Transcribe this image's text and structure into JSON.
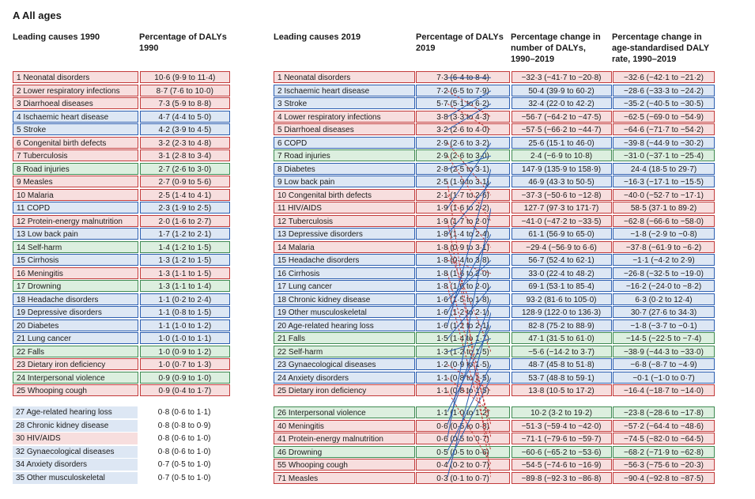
{
  "title": "A  All ages",
  "columns": {
    "c1": "Leading causes 1990",
    "c2": "Percentage of DALYs 1990",
    "c3": "Leading causes 2019",
    "c4": "Percentage of DALYs 2019",
    "c5": "Percentage change in number of DALYs, 1990–2019",
    "c6": "Percentage change in age-standardised DALY rate, 1990–2019"
  },
  "colors": {
    "red": {
      "border": "#c23b3b",
      "fill": "#f7dede"
    },
    "blue": {
      "border": "#2d5fb0",
      "fill": "#dde7f4"
    },
    "green": {
      "border": "#3f8a52",
      "fill": "#dcefdf"
    },
    "grey": {
      "border": "#8a8a8a",
      "fill": "#e9e9e9"
    }
  },
  "line_colors": {
    "solid": "#2d5fb0",
    "dash": "#c23b3b"
  },
  "rows_1990": [
    {
      "rank": 1,
      "label": "Neonatal disorders",
      "pct": "10·6 (9·9 to 11·4)",
      "color": "red"
    },
    {
      "rank": 2,
      "label": "Lower respiratory infections",
      "pct": "8·7 (7·6 to 10·0)",
      "color": "red"
    },
    {
      "rank": 3,
      "label": "Diarrhoeal diseases",
      "pct": "7·3 (5·9 to 8·8)",
      "color": "red"
    },
    {
      "rank": 4,
      "label": "Ischaemic heart disease",
      "pct": "4·7 (4·4 to 5·0)",
      "color": "blue"
    },
    {
      "rank": 5,
      "label": "Stroke",
      "pct": "4·2 (3·9 to 4·5)",
      "color": "blue"
    },
    {
      "rank": 6,
      "label": "Congenital birth defects",
      "pct": "3·2 (2·3 to 4·8)",
      "color": "red"
    },
    {
      "rank": 7,
      "label": "Tuberculosis",
      "pct": "3·1 (2·8 to 3·4)",
      "color": "red"
    },
    {
      "rank": 8,
      "label": "Road injuries",
      "pct": "2·7 (2·6 to 3·0)",
      "color": "green"
    },
    {
      "rank": 9,
      "label": "Measles",
      "pct": "2·7 (0·9 to 5·6)",
      "color": "red"
    },
    {
      "rank": 10,
      "label": "Malaria",
      "pct": "2·5 (1·4 to 4·1)",
      "color": "red"
    },
    {
      "rank": 11,
      "label": "COPD",
      "pct": "2·3 (1·9 to 2·5)",
      "color": "blue"
    },
    {
      "rank": 12,
      "label": "Protein-energy malnutrition",
      "pct": "2·0 (1·6 to 2·7)",
      "color": "red"
    },
    {
      "rank": 13,
      "label": "Low back pain",
      "pct": "1·7 (1·2 to 2·1)",
      "color": "blue"
    },
    {
      "rank": 14,
      "label": "Self-harm",
      "pct": "1·4 (1·2 to 1·5)",
      "color": "green"
    },
    {
      "rank": 15,
      "label": "Cirrhosis",
      "pct": "1·3 (1·2 to 1·5)",
      "color": "blue"
    },
    {
      "rank": 16,
      "label": "Meningitis",
      "pct": "1·3 (1·1 to 1·5)",
      "color": "red"
    },
    {
      "rank": 17,
      "label": "Drowning",
      "pct": "1·3 (1·1 to 1·4)",
      "color": "green"
    },
    {
      "rank": 18,
      "label": "Headache disorders",
      "pct": "1·1 (0·2 to 2·4)",
      "color": "blue"
    },
    {
      "rank": 19,
      "label": "Depressive disorders",
      "pct": "1·1 (0·8 to 1·5)",
      "color": "blue"
    },
    {
      "rank": 20,
      "label": "Diabetes",
      "pct": "1·1 (1·0 to 1·2)",
      "color": "blue"
    },
    {
      "rank": 21,
      "label": "Lung cancer",
      "pct": "1·0 (1·0 to 1·1)",
      "color": "blue"
    },
    {
      "rank": 22,
      "label": "Falls",
      "pct": "1·0 (0·9 to 1·2)",
      "color": "green"
    },
    {
      "rank": 23,
      "label": "Dietary iron deficiency",
      "pct": "1·0 (0·7 to 1·3)",
      "color": "red"
    },
    {
      "rank": 24,
      "label": "Interpersonal violence",
      "pct": "0·9 (0·9 to 1·0)",
      "color": "green"
    },
    {
      "rank": 25,
      "label": "Whooping cough",
      "pct": "0·9 (0·4 to 1·7)",
      "color": "red"
    }
  ],
  "below_1990": [
    {
      "rank": 27,
      "label": "Age-related hearing loss",
      "pct": "0·8 (0·6 to 1·1)",
      "color": "blue"
    },
    {
      "rank": 28,
      "label": "Chronic kidney disease",
      "pct": "0·8 (0·8 to 0·9)",
      "color": "blue"
    },
    {
      "rank": 30,
      "label": "HIV/AIDS",
      "pct": "0·8 (0·6 to 1·0)",
      "color": "red"
    },
    {
      "rank": 32,
      "label": "Gynaecological diseases",
      "pct": "0·8 (0·6 to 1·0)",
      "color": "blue"
    },
    {
      "rank": 34,
      "label": "Anxiety disorders",
      "pct": "0·7 (0·5 to 1·0)",
      "color": "blue"
    },
    {
      "rank": 35,
      "label": "Other musculoskeletal",
      "pct": "0·7 (0·5 to 1·0)",
      "color": "blue"
    }
  ],
  "rows_2019": [
    {
      "rank": 1,
      "label": "Neonatal disorders",
      "pct": "7·3 (6·4 to 8·4)",
      "chgN": "−32·3 (−41·7 to −20·8)",
      "chgR": "−32·6 (−42·1 to −21·2)",
      "color": "red"
    },
    {
      "rank": 2,
      "label": "Ischaemic heart disease",
      "pct": "7·2 (6·5 to 7·9)",
      "chgN": "50·4 (39·9 to 60·2)",
      "chgR": "−28·6 (−33·3 to −24·2)",
      "color": "blue"
    },
    {
      "rank": 3,
      "label": "Stroke",
      "pct": "5·7 (5·1 to 6·2)",
      "chgN": "32·4 (22·0 to 42·2)",
      "chgR": "−35·2 (−40·5 to −30·5)",
      "color": "blue"
    },
    {
      "rank": 4,
      "label": "Lower respiratory infections",
      "pct": "3·8 (3·3 to 4·3)",
      "chgN": "−56·7 (−64·2 to −47·5)",
      "chgR": "−62·5 (−69·0 to −54·9)",
      "color": "red"
    },
    {
      "rank": 5,
      "label": "Diarrhoeal diseases",
      "pct": "3·2 (2·6 to 4·0)",
      "chgN": "−57·5 (−66·2 to −44·7)",
      "chgR": "−64·6 (−71·7 to −54·2)",
      "color": "red"
    },
    {
      "rank": 6,
      "label": "COPD",
      "pct": "2·9 (2·6 to 3·2)",
      "chgN": "25·6 (15·1 to 46·0)",
      "chgR": "−39·8 (−44·9 to −30·2)",
      "color": "blue"
    },
    {
      "rank": 7,
      "label": "Road injuries",
      "pct": "2·9 (2·6 to 3·0)",
      "chgN": "2·4 (−6·9 to 10·8)",
      "chgR": "−31·0 (−37·1 to −25·4)",
      "color": "green"
    },
    {
      "rank": 8,
      "label": "Diabetes",
      "pct": "2·8 (2·5 to 3·1)",
      "chgN": "147·9 (135·9 to 158·9)",
      "chgR": "24·4 (18·5 to 29·7)",
      "color": "blue"
    },
    {
      "rank": 9,
      "label": "Low back pain",
      "pct": "2·5 (1·9 to 3·1)",
      "chgN": "46·9 (43·3 to 50·5)",
      "chgR": "−16·3 (−17·1 to −15·5)",
      "color": "blue"
    },
    {
      "rank": 10,
      "label": "Congenital birth defects",
      "pct": "2·1 (1·7 to 2·6)",
      "chgN": "−37·3 (−50·6 to −12·8)",
      "chgR": "−40·0 (−52·7 to −17·1)",
      "color": "red"
    },
    {
      "rank": 11,
      "label": "HIV/AIDS",
      "pct": "1·9 (1·6 to 2·2)",
      "chgN": "127·7 (97·3 to 171·7)",
      "chgR": "58·5 (37·1 to 89·2)",
      "color": "red"
    },
    {
      "rank": 12,
      "label": "Tuberculosis",
      "pct": "1·9 (1·7 to 2·0)",
      "chgN": "−41·0 (−47·2 to −33·5)",
      "chgR": "−62·8 (−66·6 to −58·0)",
      "color": "red"
    },
    {
      "rank": 13,
      "label": "Depressive disorders",
      "pct": "1·8 (1·4 to 2·4)",
      "chgN": "61·1 (56·9 to 65·0)",
      "chgR": "−1·8 (−2·9 to −0·8)",
      "color": "blue"
    },
    {
      "rank": 14,
      "label": "Malaria",
      "pct": "1·8 (0·9 to 3·1)",
      "chgN": "−29·4 (−56·9 to 6·6)",
      "chgR": "−37·8 (−61·9 to −6·2)",
      "color": "red"
    },
    {
      "rank": 15,
      "label": "Headache disorders",
      "pct": "1·8 (0·4 to 3·8)",
      "chgN": "56·7 (52·4 to 62·1)",
      "chgR": "−1·1 (−4·2 to 2·9)",
      "color": "blue"
    },
    {
      "rank": 16,
      "label": "Cirrhosis",
      "pct": "1·8 (1·6 to 2·0)",
      "chgN": "33·0 (22·4 to 48·2)",
      "chgR": "−26·8 (−32·5 to −19·0)",
      "color": "blue"
    },
    {
      "rank": 17,
      "label": "Lung cancer",
      "pct": "1·8 (1·6 to 2·0)",
      "chgN": "69·1 (53·1 to 85·4)",
      "chgR": "−16·2 (−24·0 to −8·2)",
      "color": "blue"
    },
    {
      "rank": 18,
      "label": "Chronic kidney disease",
      "pct": "1·6 (1·5 to 1·8)",
      "chgN": "93·2 (81·6 to 105·0)",
      "chgR": "6·3 (0·2 to 12·4)",
      "color": "blue"
    },
    {
      "rank": 19,
      "label": "Other musculoskeletal",
      "pct": "1·6 (1·2 to 2·1)",
      "chgN": "128·9 (122·0 to 136·3)",
      "chgR": "30·7 (27·6 to 34·3)",
      "color": "blue"
    },
    {
      "rank": 20,
      "label": "Age-related hearing loss",
      "pct": "1·6 (1·2 to 2·1)",
      "chgN": "82·8 (75·2 to 88·9)",
      "chgR": "−1·8 (−3·7 to −0·1)",
      "color": "blue"
    },
    {
      "rank": 21,
      "label": "Falls",
      "pct": "1·5 (1·4 to 1·7)",
      "chgN": "47·1 (31·5 to 61·0)",
      "chgR": "−14·5 (−22·5 to −7·4)",
      "color": "green"
    },
    {
      "rank": 22,
      "label": "Self-harm",
      "pct": "1·3 (1·2 to 1·5)",
      "chgN": "−5·6 (−14·2 to 3·7)",
      "chgR": "−38·9 (−44·3 to −33·0)",
      "color": "green"
    },
    {
      "rank": 23,
      "label": "Gynaecological diseases",
      "pct": "1·2 (0·9 to 1·5)",
      "chgN": "48·7 (45·8 to 51·8)",
      "chgR": "−6·8 (−8·7 to −4·9)",
      "color": "blue"
    },
    {
      "rank": 24,
      "label": "Anxiety disorders",
      "pct": "1·1 (0·8 to 1·5)",
      "chgN": "53·7 (48·8 to 59·1)",
      "chgR": "−0·1 (−1·0 to 0·7)",
      "color": "blue"
    },
    {
      "rank": 25,
      "label": "Dietary iron deficiency",
      "pct": "1·1 (0·8 to 1·5)",
      "chgN": "13·8 (10·5 to 17·2)",
      "chgR": "−16·4 (−18·7 to −14·0)",
      "color": "red"
    }
  ],
  "below_2019": [
    {
      "rank": 26,
      "label": "Interpersonal violence",
      "pct": "1·1 (1·0 to 1·2)",
      "chgN": "10·2 (3·2 to 19·2)",
      "chgR": "−23·8 (−28·6 to −17·8)",
      "color": "green"
    },
    {
      "rank": 40,
      "label": "Meningitis",
      "pct": "0·6 (0·5 to 0·8)",
      "chgN": "−51·3 (−59·4 to −42·0)",
      "chgR": "−57·2 (−64·4 to −48·6)",
      "color": "red"
    },
    {
      "rank": 41,
      "label": "Protein-energy malnutrition",
      "pct": "0·6 (0·5 to 0·7)",
      "chgN": "−71·1 (−79·6 to −59·7)",
      "chgR": "−74·5 (−82·0 to −64·5)",
      "color": "red"
    },
    {
      "rank": 46,
      "label": "Drowning",
      "pct": "0·5 (0·5 to 0·6)",
      "chgN": "−60·6 (−65·2 to −53·6)",
      "chgR": "−68·2 (−71·9 to −62·8)",
      "color": "green"
    },
    {
      "rank": 55,
      "label": "Whooping cough",
      "pct": "0·4 (0·2 to 0·7)",
      "chgN": "−54·5 (−74·6 to −16·9)",
      "chgR": "−56·3 (−75·6 to −20·3)",
      "color": "red"
    },
    {
      "rank": 71,
      "label": "Measles",
      "pct": "0·3 (0·1 to 0·7)",
      "chgN": "−89·8 (−92·3 to −86·8)",
      "chgR": "−90·4 (−92·8 to −87·5)",
      "color": "red"
    }
  ],
  "connectors": [
    {
      "from": 1,
      "to": 1,
      "style": "solid"
    },
    {
      "from": 2,
      "to": 4,
      "style": "dash"
    },
    {
      "from": 3,
      "to": 5,
      "style": "dash"
    },
    {
      "from": 4,
      "to": 2,
      "style": "solid"
    },
    {
      "from": 5,
      "to": 3,
      "style": "solid"
    },
    {
      "from": 6,
      "to": 10,
      "style": "dash"
    },
    {
      "from": 7,
      "to": 12,
      "style": "dash"
    },
    {
      "from": 8,
      "to": 7,
      "style": "solid"
    },
    {
      "from": 9,
      "to": 31,
      "style": "dash"
    },
    {
      "from": 10,
      "to": 14,
      "style": "dash"
    },
    {
      "from": 11,
      "to": 6,
      "style": "solid"
    },
    {
      "from": 12,
      "to": 28,
      "style": "dash"
    },
    {
      "from": 13,
      "to": 9,
      "style": "solid"
    },
    {
      "from": 14,
      "to": 22,
      "style": "dash"
    },
    {
      "from": 15,
      "to": 16,
      "style": "dash"
    },
    {
      "from": 16,
      "to": 27,
      "style": "dash"
    },
    {
      "from": 17,
      "to": 29,
      "style": "dash"
    },
    {
      "from": 18,
      "to": 15,
      "style": "solid"
    },
    {
      "from": 19,
      "to": 13,
      "style": "solid"
    },
    {
      "from": 20,
      "to": 8,
      "style": "solid"
    },
    {
      "from": 21,
      "to": 17,
      "style": "solid"
    },
    {
      "from": 22,
      "to": 21,
      "style": "solid"
    },
    {
      "from": 23,
      "to": 25,
      "style": "dash"
    },
    {
      "from": 24,
      "to": 26,
      "style": "dash"
    },
    {
      "from": 25,
      "to": 30,
      "style": "dash"
    },
    {
      "from": 26,
      "to": 20,
      "style": "solid"
    },
    {
      "from": 27,
      "to": 18,
      "style": "solid"
    },
    {
      "from": 28,
      "to": 11,
      "style": "solid"
    },
    {
      "from": 29,
      "to": 23,
      "style": "solid"
    },
    {
      "from": 30,
      "to": 24,
      "style": "solid"
    },
    {
      "from": 31,
      "to": 19,
      "style": "solid"
    }
  ],
  "row_height": 16.5,
  "gap_after_25": 10
}
